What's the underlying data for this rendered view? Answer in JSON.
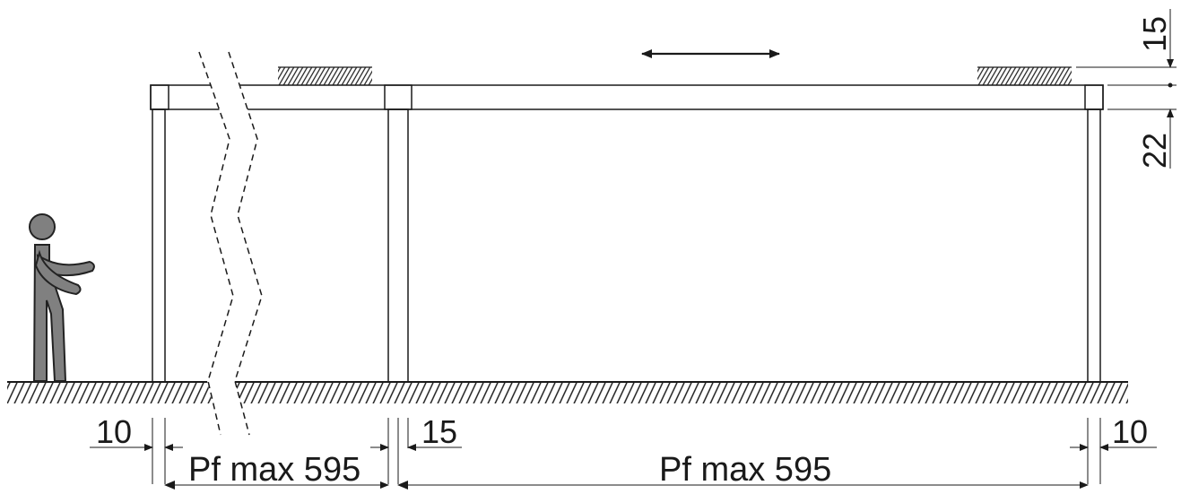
{
  "diagram": {
    "dimensions": {
      "left_post": "10",
      "middle_post": "15",
      "right_post": "10",
      "beam_top": "15",
      "beam_height": "22",
      "span_left": "Pf max 595",
      "span_right": "Pf max 595"
    },
    "colors": {
      "line": "#1a1a1a",
      "figure": "#808080",
      "figure_outline": "#222222",
      "background": "#ffffff"
    },
    "icons": {
      "movement": "double-arrow-icon",
      "person": "person-icon"
    }
  }
}
